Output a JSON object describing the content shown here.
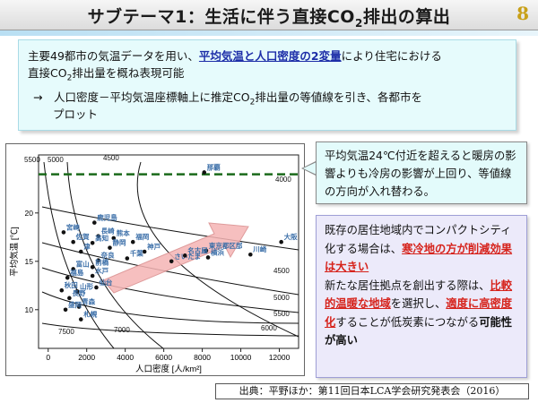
{
  "title": {
    "text_main": "サブテーマ1：生活に伴う直接CO",
    "text_sub": "2",
    "text_tail": "排出の算出",
    "page_number": "8"
  },
  "summary": {
    "l1_a": "主要49都市の気温データを用い、",
    "l1_hl": "平均気温と人口密度の2変量",
    "l1_b": "により住宅における",
    "l2_a": "直接CO",
    "l2_sub": "2",
    "l2_b": "排出量を概ね表現可能",
    "arrow": "→",
    "l3_a": "人口密度－平均気温座標軸上に推定CO",
    "l3_sub": "2",
    "l3_b": "排出量の等値線を引き、各都市を",
    "l4": "プロット"
  },
  "callout": {
    "text": "平均気温24℃付近を超えると暖房の影響よりも冷房の影響が上回り、等値線の方向が入れ替わる。"
  },
  "note": {
    "p1": "既存の居住地域内でコンパクトシティ化する場合は、",
    "p1_red": "寒冷地の方が削減効果は大きい",
    "p2": "新たな居住拠点を創出する際は、",
    "p2_red1": "比較的温暖な地域",
    "p2_mid": "を選択し、",
    "p2_red2": "適度に高密度化",
    "p2_tail": "することが低炭素につながる",
    "p2_bold": "可能性が高い"
  },
  "citation": {
    "text": "出典：平野ほか：第11回日本LCA学会研究発表会（2016）"
  },
  "colors": {
    "accent_red": "#d6231c",
    "highlight_blue": "#1d2ea8",
    "dashed_line": "#1a6a1a",
    "city_label": "#3a6ea8",
    "arrow_fill": "#f5b5b5"
  },
  "chart_data": {
    "type": "scatter",
    "xlabel": "人口密度 [人/km²]",
    "ylabel": "平均気温 [℃]",
    "xlim": [
      -500,
      13000
    ],
    "ylim": [
      6,
      26
    ],
    "xticks": [
      "0",
      "2000",
      "4000",
      "6000",
      "8000",
      "10000",
      "12000"
    ],
    "yticks": [
      "10",
      "15",
      "20"
    ],
    "threshold_temperature": 24,
    "contour_labels": [
      "5500",
      "5000",
      "4500",
      "4000",
      "4500",
      "5000",
      "5500",
      "6000",
      "7000",
      "7500"
    ],
    "cities": [
      {
        "name": "那覇",
        "x": 8100,
        "y": 24.2
      },
      {
        "name": "鹿児島",
        "x": 2400,
        "y": 19.0
      },
      {
        "name": "宮崎",
        "x": 800,
        "y": 18.0
      },
      {
        "name": "長崎",
        "x": 2600,
        "y": 17.6
      },
      {
        "name": "熊本",
        "x": 3400,
        "y": 17.4
      },
      {
        "name": "佐賀",
        "x": 1300,
        "y": 17.0
      },
      {
        "name": "高知",
        "x": 2300,
        "y": 16.9
      },
      {
        "name": "福岡",
        "x": 4400,
        "y": 17.0
      },
      {
        "name": "大阪",
        "x": 12100,
        "y": 17.0
      },
      {
        "name": "静岡",
        "x": 3200,
        "y": 16.4
      },
      {
        "name": "津",
        "x": 1700,
        "y": 16.0
      },
      {
        "name": "東京都区部",
        "x": 8200,
        "y": 16.1
      },
      {
        "name": "神戸",
        "x": 5000,
        "y": 16.0
      },
      {
        "name": "川崎",
        "x": 10500,
        "y": 15.7
      },
      {
        "name": "千葉",
        "x": 4100,
        "y": 15.3
      },
      {
        "name": "奈良",
        "x": 2600,
        "y": 15.1
      },
      {
        "name": "富山",
        "x": 1300,
        "y": 14.2
      },
      {
        "name": "前橋",
        "x": 2300,
        "y": 14.4
      },
      {
        "name": "横浜",
        "x": 8300,
        "y": 15.4
      },
      {
        "name": "さいたま",
        "x": 6400,
        "y": 15.0
      },
      {
        "name": "名古屋",
        "x": 7100,
        "y": 15.6
      },
      {
        "name": "福島",
        "x": 1000,
        "y": 13.3
      },
      {
        "name": "水戸",
        "x": 2300,
        "y": 13.5
      },
      {
        "name": "秋田",
        "x": 700,
        "y": 12.0
      },
      {
        "name": "山形",
        "x": 1500,
        "y": 11.9
      },
      {
        "name": "仙台",
        "x": 2500,
        "y": 12.3
      },
      {
        "name": "長野",
        "x": 1100,
        "y": 11.2
      },
      {
        "name": "青森",
        "x": 1600,
        "y": 10.3
      },
      {
        "name": "盛岡",
        "x": 900,
        "y": 10.0
      },
      {
        "name": "札幌",
        "x": 1700,
        "y": 9.0
      }
    ]
  }
}
